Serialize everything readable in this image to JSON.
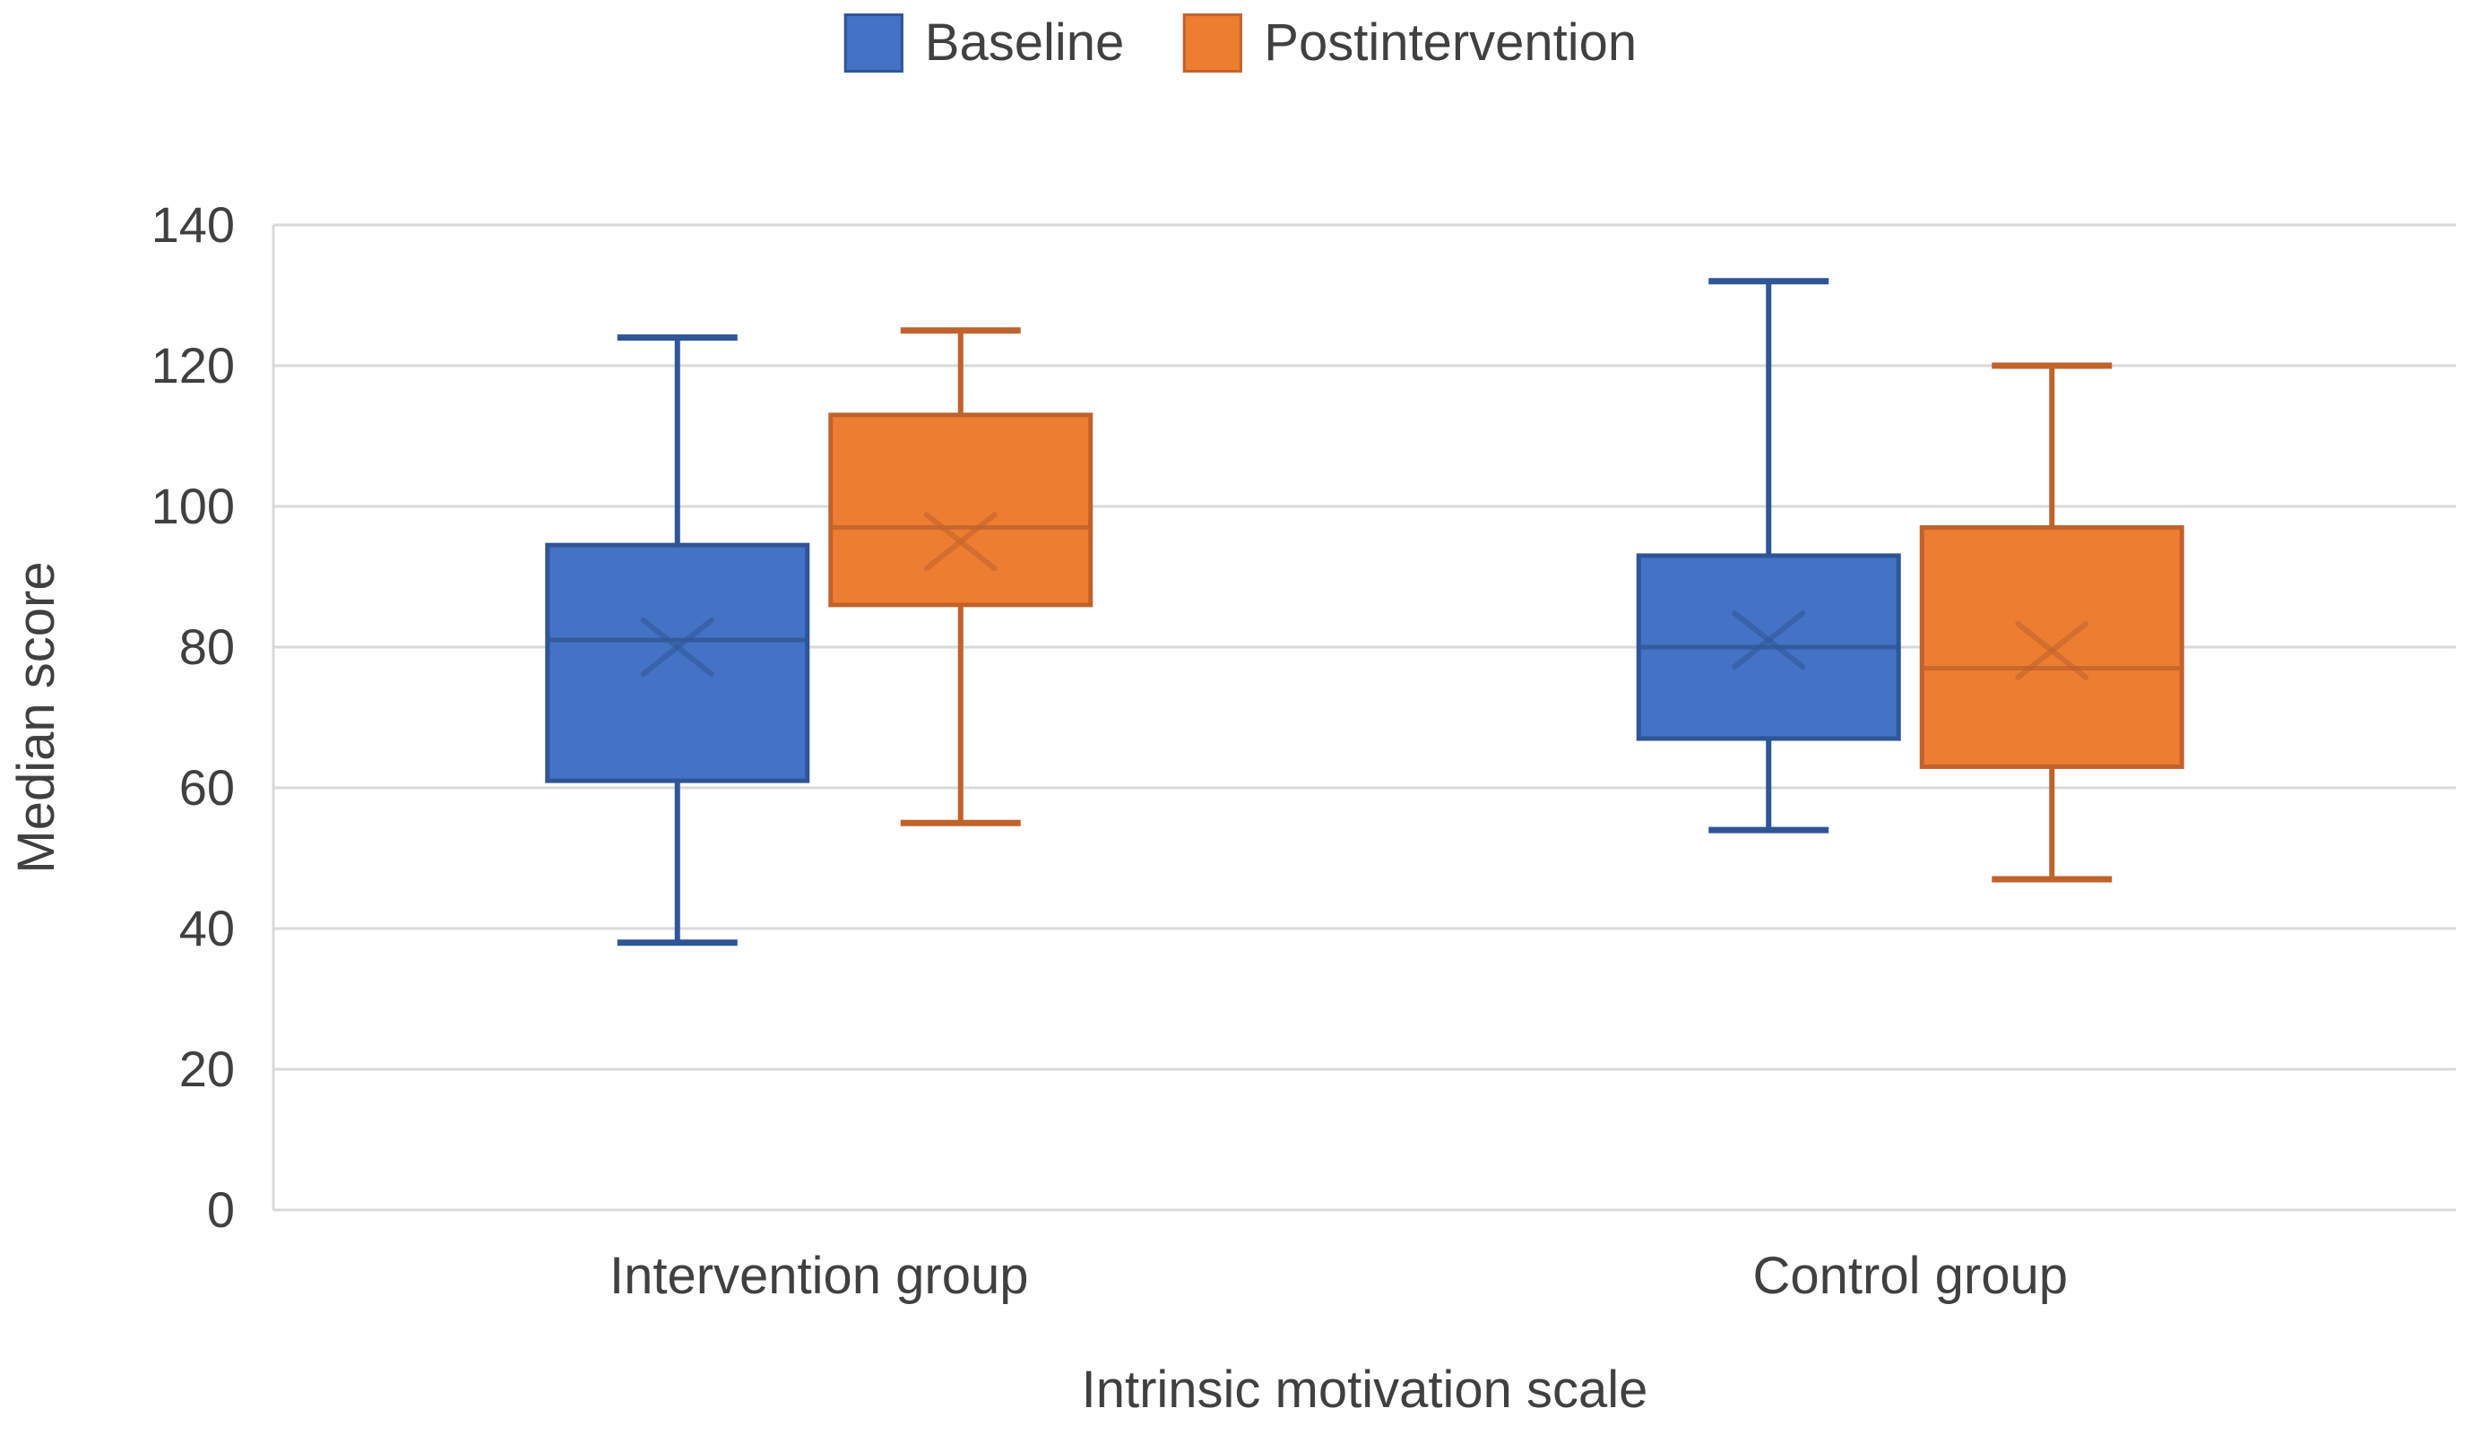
{
  "legend": {
    "items": [
      {
        "label": "Baseline",
        "color": "#4472C4",
        "border": "#2F5597"
      },
      {
        "label": "Postintervention",
        "color": "#ED7D31",
        "border": "#C0622C"
      }
    ]
  },
  "chart_data": {
    "type": "boxplot",
    "title": "",
    "xlabel": "Intrinsic motivation scale",
    "ylabel": "Median score",
    "ylim": [
      0,
      140
    ],
    "ytick_step": 20,
    "grid": true,
    "legend_position": "top",
    "categories": [
      "Intervention group",
      "Control group"
    ],
    "series": [
      {
        "name": "Baseline",
        "fill": "#4472C4",
        "stroke": "#2F5597",
        "boxes": [
          {
            "category": "Intervention group",
            "min": 38,
            "q1": 61,
            "median": 81,
            "mean": 80,
            "q3": 94.5,
            "max": 124
          },
          {
            "category": "Control group",
            "min": 54,
            "q1": 67,
            "median": 80,
            "mean": 81,
            "q3": 93,
            "max": 132
          }
        ]
      },
      {
        "name": "Postintervention",
        "fill": "#ED7D31",
        "stroke": "#C0622C",
        "boxes": [
          {
            "category": "Intervention group",
            "min": 55,
            "q1": 86,
            "median": 97,
            "mean": 95,
            "q3": 113,
            "max": 125
          },
          {
            "category": "Control group",
            "min": 47,
            "q1": 63,
            "median": 77,
            "mean": 79.5,
            "q3": 97,
            "max": 120
          }
        ]
      }
    ],
    "colors": {
      "gridline": "#D9D9D9",
      "text": "#404040",
      "background": "#FFFFFF"
    }
  }
}
